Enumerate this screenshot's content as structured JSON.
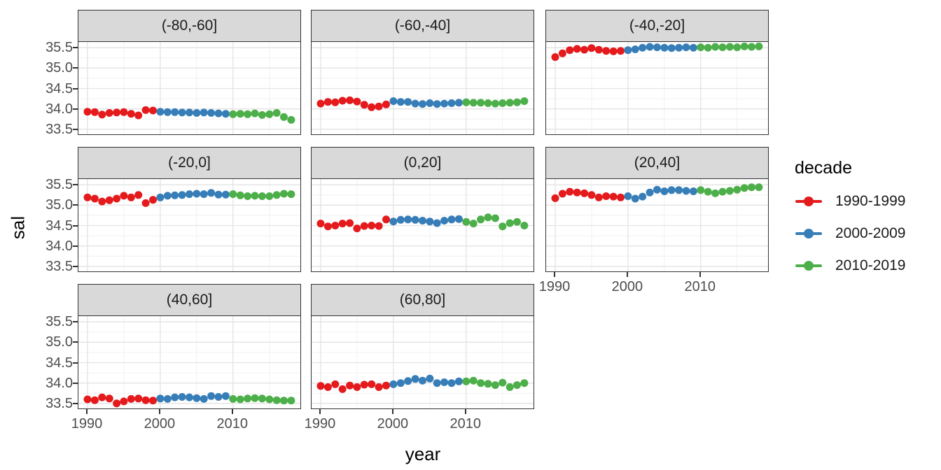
{
  "figure": {
    "y_axis_title": "sal",
    "x_axis_title": "year"
  },
  "legend": {
    "title": "decade",
    "entries": [
      {
        "label": "1990-1999",
        "color": "#E41A1C"
      },
      {
        "label": "2000-2009",
        "color": "#377EB8"
      },
      {
        "label": "2010-2019",
        "color": "#4DAF4A"
      }
    ]
  },
  "chart_data": {
    "type": "scatter",
    "title": "",
    "xlabel": "year",
    "ylabel": "sal",
    "legend_title": "decade",
    "legend_position": "right",
    "grid": "major and minor, light gray on white, dark panel border, gray facet strips",
    "facet_layout": {
      "ncol": 3,
      "nrow": 3,
      "n_facets": 8
    },
    "xlim": [
      1988.75,
      2019.45
    ],
    "ylim": [
      33.36,
      35.64
    ],
    "x_major_ticks": [
      1990,
      2000,
      2010
    ],
    "x_minor_ticks": [
      1995,
      2005,
      2015
    ],
    "y_major_ticks": [
      35.5,
      35.0,
      34.5,
      34.0,
      33.5
    ],
    "y_minor_ticks": [
      35.25,
      34.75,
      34.25,
      33.75
    ],
    "series": [
      {
        "name": "1990-1999",
        "color": "#E41A1C",
        "years": [
          1990,
          1991,
          1992,
          1993,
          1994,
          1995,
          1996,
          1997,
          1998,
          1999
        ]
      },
      {
        "name": "2000-2009",
        "color": "#377EB8",
        "years": [
          2000,
          2001,
          2002,
          2003,
          2004,
          2005,
          2006,
          2007,
          2008,
          2009
        ]
      },
      {
        "name": "2010-2019",
        "color": "#4DAF4A",
        "years": [
          2010,
          2011,
          2012,
          2013,
          2014,
          2015,
          2016,
          2017,
          2018
        ]
      }
    ],
    "facets": [
      {
        "label": "(-80,-60]",
        "values": [
          [
            33.93,
            33.92,
            33.86,
            33.9,
            33.91,
            33.92,
            33.88,
            33.84,
            33.97,
            33.96
          ],
          [
            33.93,
            33.92,
            33.92,
            33.91,
            33.91,
            33.9,
            33.91,
            33.9,
            33.89,
            33.88
          ],
          [
            33.87,
            33.88,
            33.87,
            33.89,
            33.85,
            33.87,
            33.9,
            33.8,
            33.73
          ]
        ]
      },
      {
        "label": "(-60,-40]",
        "values": [
          [
            34.13,
            34.17,
            34.16,
            34.2,
            34.21,
            34.18,
            34.1,
            34.04,
            34.06,
            34.11
          ],
          [
            34.19,
            34.17,
            34.17,
            34.13,
            34.12,
            34.14,
            34.12,
            34.13,
            34.14,
            34.15
          ],
          [
            34.16,
            34.15,
            34.15,
            34.14,
            34.13,
            34.14,
            34.15,
            34.16,
            34.19
          ]
        ]
      },
      {
        "label": "(-40,-20]",
        "values": [
          [
            35.27,
            35.36,
            35.44,
            35.47,
            35.45,
            35.49,
            35.45,
            35.42,
            35.41,
            35.42
          ],
          [
            35.44,
            35.46,
            35.5,
            35.52,
            35.51,
            35.5,
            35.49,
            35.5,
            35.51,
            35.5
          ],
          [
            35.51,
            35.5,
            35.52,
            35.51,
            35.52,
            35.51,
            35.53,
            35.52,
            35.53
          ]
        ]
      },
      {
        "label": "(-20,0]",
        "values": [
          [
            35.19,
            35.16,
            35.09,
            35.12,
            35.16,
            35.23,
            35.19,
            35.25,
            35.05,
            35.13
          ],
          [
            35.19,
            35.23,
            35.24,
            35.25,
            35.27,
            35.28,
            35.27,
            35.3,
            35.26,
            35.26
          ],
          [
            35.27,
            35.24,
            35.22,
            35.23,
            35.22,
            35.22,
            35.25,
            35.28,
            35.27
          ]
        ]
      },
      {
        "label": "(0,20]",
        "values": [
          [
            34.55,
            34.48,
            34.5,
            34.55,
            34.56,
            34.43,
            34.49,
            34.5,
            34.49,
            34.65
          ],
          [
            34.6,
            34.64,
            34.65,
            34.64,
            34.62,
            34.6,
            34.56,
            34.62,
            34.65,
            34.66
          ],
          [
            34.59,
            34.55,
            34.65,
            34.7,
            34.68,
            34.48,
            34.56,
            34.59,
            34.5
          ]
        ]
      },
      {
        "label": "(20,40]",
        "values": [
          [
            35.17,
            35.28,
            35.33,
            35.31,
            35.29,
            35.25,
            35.19,
            35.22,
            35.21,
            35.19
          ],
          [
            35.22,
            35.16,
            35.21,
            35.31,
            35.38,
            35.34,
            35.37,
            35.37,
            35.35,
            35.34
          ],
          [
            35.37,
            35.33,
            35.29,
            35.33,
            35.35,
            35.38,
            35.42,
            35.44,
            35.44
          ]
        ]
      },
      {
        "label": "(40,60]",
        "values": [
          [
            33.6,
            33.58,
            33.65,
            33.62,
            33.5,
            33.55,
            33.61,
            33.62,
            33.58,
            33.57
          ],
          [
            33.62,
            33.61,
            33.65,
            33.66,
            33.65,
            33.63,
            33.61,
            33.68,
            33.66,
            33.68
          ],
          [
            33.61,
            33.6,
            33.62,
            33.63,
            33.62,
            33.6,
            33.58,
            33.57,
            33.57
          ]
        ]
      },
      {
        "label": "(60,80]",
        "values": [
          [
            33.93,
            33.9,
            33.97,
            33.85,
            33.94,
            33.9,
            33.96,
            33.97,
            33.9,
            33.94
          ],
          [
            33.97,
            34.0,
            34.05,
            34.1,
            34.06,
            34.11,
            34.0,
            34.02,
            34.0,
            34.04
          ],
          [
            34.04,
            34.06,
            34.0,
            33.98,
            33.95,
            34.01,
            33.9,
            33.95,
            34.0
          ]
        ]
      }
    ]
  }
}
